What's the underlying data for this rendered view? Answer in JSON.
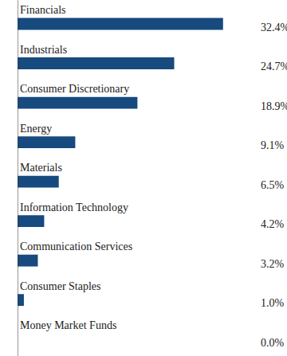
{
  "chart_data": {
    "type": "bar",
    "orientation": "horizontal",
    "categories": [
      "Financials",
      "Industrials",
      "Consumer Discretionary",
      "Energy",
      "Materials",
      "Information Technology",
      "Communication Services",
      "Consumer Staples",
      "Money Market Funds"
    ],
    "values": [
      32.4,
      24.7,
      18.9,
      9.1,
      6.5,
      4.2,
      3.2,
      1.0,
      0.0
    ],
    "value_labels": [
      "32.4%",
      "24.7%",
      "18.9%",
      "9.1%",
      "6.5%",
      "4.2%",
      "3.2%",
      "1.0%",
      "0.0%"
    ],
    "data_labels": true,
    "color": "#174a7e",
    "grid": false
  }
}
